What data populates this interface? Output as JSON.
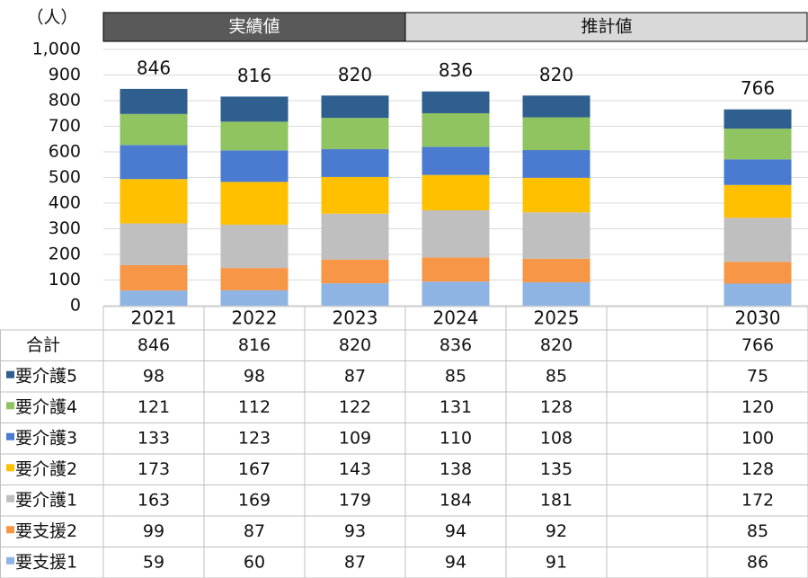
{
  "chart_data": {
    "type": "stacked_bar_table",
    "y_axis_label": "（人）",
    "header_labels": [
      "実績値",
      "推計値"
    ],
    "categories": [
      "2021",
      "2022",
      "2023",
      "2024",
      "2025",
      null,
      "2030"
    ],
    "total_label": "合計",
    "totals": [
      846,
      816,
      820,
      836,
      820,
      null,
      766
    ],
    "series": [
      {
        "name": "要支援1",
        "color": "#8db4e2",
        "values": [
          59,
          60,
          87,
          94,
          91,
          null,
          86
        ]
      },
      {
        "name": "要支援2",
        "color": "#f79646",
        "values": [
          99,
          87,
          93,
          94,
          92,
          null,
          85
        ]
      },
      {
        "name": "要介護1",
        "color": "#bfbfbf",
        "values": [
          163,
          169,
          179,
          184,
          181,
          null,
          172
        ]
      },
      {
        "name": "要介護2",
        "color": "#ffc000",
        "values": [
          173,
          167,
          143,
          138,
          135,
          null,
          128
        ]
      },
      {
        "name": "要介護3",
        "color": "#4a7bd0",
        "values": [
          133,
          123,
          109,
          110,
          108,
          null,
          100
        ]
      },
      {
        "name": "要介護4",
        "color": "#8fc460",
        "values": [
          121,
          112,
          122,
          131,
          128,
          null,
          120
        ]
      },
      {
        "name": "要介護5",
        "color": "#2e5f8f",
        "values": [
          98,
          98,
          87,
          85,
          85,
          null,
          75
        ]
      }
    ],
    "ylim": [
      0,
      1000
    ],
    "yticks": [
      0,
      100,
      200,
      300,
      400,
      500,
      600,
      700,
      800,
      900,
      {
        "value": 1000,
        "label": "1,000"
      }
    ],
    "grid": true
  }
}
